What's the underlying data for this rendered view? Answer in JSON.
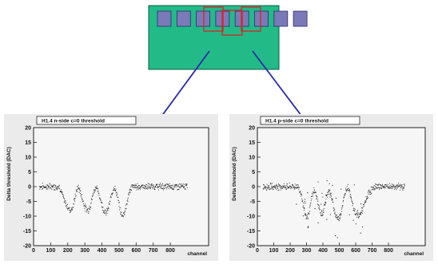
{
  "colors": {
    "module": "#22bb88",
    "module_stroke": "#0b5e45",
    "chip": "#7a7ab8",
    "chip_stroke": "#2a2a66",
    "highlight": "#dd2222",
    "arrow": "#2a2aa8",
    "panel": "#ebebeb",
    "plot_bg": "#f6f6f6",
    "points": "#222222"
  },
  "module": {
    "chips": 8,
    "highlighted_chips": [
      3,
      4,
      6
    ]
  },
  "chart_data": [
    {
      "type": "scatter",
      "title": "H1.4 n-side c=0 threshold",
      "xlabel": "channel",
      "ylabel": "Delta threshold (DAC)",
      "xlim": [
        0,
        1024
      ],
      "ylim": [
        -20,
        20
      ],
      "xticks": [
        0,
        100,
        200,
        300,
        400,
        500,
        600,
        700,
        800
      ],
      "yticks": [
        -20,
        -15,
        -10,
        -5,
        0,
        5,
        10,
        15,
        20
      ],
      "grid": false,
      "series": [
        {
          "x": [
            0,
            40,
            80,
            120,
            150,
            165,
            180,
            200,
            215,
            230,
            245,
            260,
            275,
            290,
            305,
            320,
            335,
            350,
            365,
            380,
            395,
            410,
            425,
            440,
            455,
            470,
            485,
            500,
            515,
            530,
            545,
            560,
            575,
            590,
            605,
            640,
            700,
            760,
            820,
            880
          ],
          "y": [
            0,
            0,
            0,
            0,
            0,
            -2,
            -5,
            -7,
            -8,
            -7,
            -3,
            0,
            -2,
            -5,
            -7.5,
            -8,
            -6,
            -2,
            0,
            -2,
            -5,
            -8,
            -9,
            -7,
            -3,
            0,
            -2,
            -6,
            -10,
            -9,
            -6,
            -2,
            0,
            0,
            0,
            0,
            0,
            0,
            0,
            0
          ]
        }
      ]
    },
    {
      "type": "scatter",
      "title": "H1.4 p-side c=0 threshold",
      "xlabel": "channel",
      "ylabel": "Delta threshold (DAC)",
      "xlim": [
        0,
        1024
      ],
      "ylim": [
        -20,
        20
      ],
      "xticks": [
        0,
        100,
        200,
        300,
        400,
        500,
        600,
        700,
        800
      ],
      "yticks": [
        -20,
        -15,
        -10,
        -5,
        0,
        5,
        10,
        15,
        20
      ],
      "grid": false,
      "series": [
        {
          "x": [
            0,
            40,
            80,
            120,
            160,
            200,
            230,
            250,
            270,
            285,
            300,
            315,
            330,
            345,
            360,
            375,
            390,
            405,
            420,
            435,
            450,
            465,
            480,
            495,
            510,
            525,
            540,
            555,
            570,
            585,
            600,
            620,
            640,
            660,
            680,
            700,
            720,
            760,
            820,
            880
          ],
          "y": [
            0,
            0,
            0,
            0,
            0,
            0,
            0,
            0,
            -3,
            -8,
            -11,
            -9,
            -4,
            -1,
            -3,
            -7,
            -10,
            -8,
            -4,
            -1,
            -3,
            -7,
            -10,
            -11,
            -9,
            -5,
            -1,
            0,
            -3,
            -7,
            -9,
            -10,
            -8,
            -5,
            -2,
            -1,
            0,
            0,
            0,
            0
          ]
        }
      ]
    }
  ]
}
